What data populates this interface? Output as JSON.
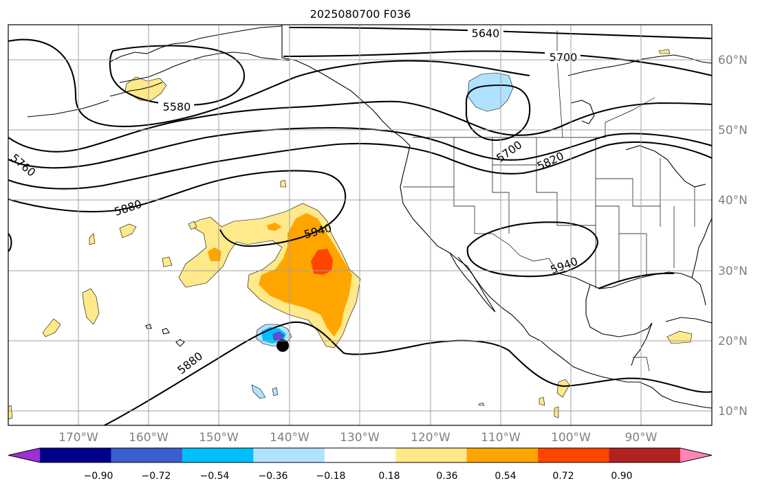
{
  "title": "2025080700 F036",
  "lon_labels": [
    "170°W",
    "160°W",
    "150°W",
    "140°W",
    "130°W",
    "120°W",
    "110°W",
    "100°W",
    "90°W"
  ],
  "lat_labels": [
    "60°N",
    "50°N",
    "40°N",
    "30°N",
    "20°N",
    "10°N"
  ],
  "colorbar": {
    "tick_labels": [
      "−0.90",
      "−0.72",
      "−0.54",
      "−0.36",
      "−0.18",
      "0.18",
      "0.36",
      "0.54",
      "0.72",
      "0.90"
    ],
    "colors": [
      "#9b30d6",
      "#00008b",
      "#3a5fcd",
      "#00bfff",
      "#b0e2ff",
      "#ffffff",
      "#ffe98a",
      "#ffa500",
      "#ff4500",
      "#b22222",
      "#ff85b4"
    ]
  },
  "contour_labels": {
    "c5640": "5640",
    "c5700_north": "5700",
    "c5580": "5580",
    "c5760": "5760",
    "c5700_east": "5700",
    "c5820": "5820",
    "c5880_west": "5880",
    "c5940_mid": "5940",
    "c5940_east": "5940",
    "c5880_south": "5880"
  },
  "marker": {
    "lon": -141,
    "lat": 19
  }
}
